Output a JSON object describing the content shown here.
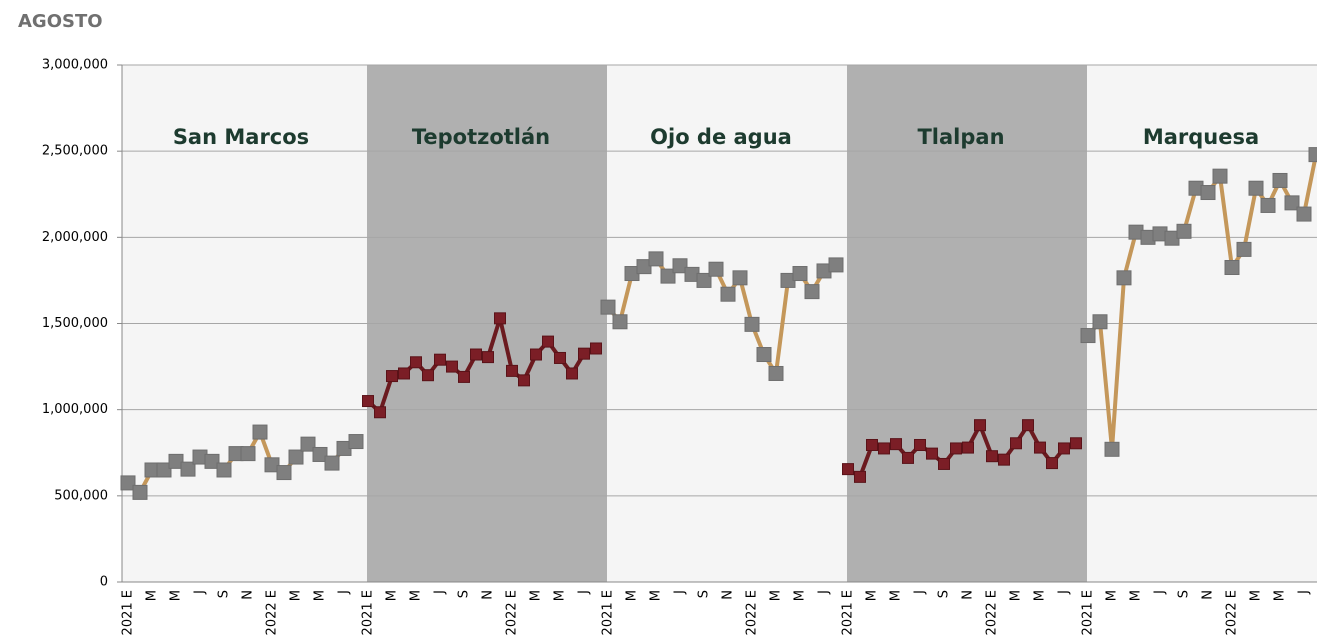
{
  "chart_data": {
    "type": "line",
    "title": "AGOSTO",
    "categories": [
      "2021 E",
      null,
      "M",
      null,
      "M",
      null,
      "J",
      null,
      "S",
      null,
      "N",
      null,
      "2022 E",
      null,
      "M",
      null,
      "M",
      null,
      "J",
      null
    ],
    "ylim": [
      0,
      3000000
    ],
    "yticks": [
      0,
      {
        "value": 500000,
        "label": "500,000"
      },
      {
        "value": 1000000,
        "label": "1,000,000"
      },
      {
        "value": 1500000,
        "label": "1,500,000"
      },
      {
        "value": 2000000,
        "label": "2,000,000"
      },
      {
        "value": 2500000,
        "label": "2,500,000"
      },
      {
        "value": 3000000,
        "label": "3,000,000"
      }
    ],
    "grid": true,
    "series": [
      {
        "name": "San Marcos",
        "color": "#c4975a",
        "marker_color": "#7f7f7f",
        "background": "#f5f5f5",
        "values": [
          575000,
          520000,
          650000,
          650000,
          700000,
          655000,
          725000,
          700000,
          650000,
          745000,
          745000,
          870000,
          680000,
          635000,
          725000,
          800000,
          740000,
          690000,
          775000,
          815000
        ]
      },
      {
        "name": "Tepotzotlán",
        "color": "#6b1a1f",
        "marker_color": "#7b1e26",
        "background": "#b0b0b0",
        "values": [
          1050000,
          985000,
          1195000,
          1210000,
          1275000,
          1200000,
          1290000,
          1250000,
          1190000,
          1320000,
          1305000,
          1530000,
          1225000,
          1170000,
          1320000,
          1395000,
          1300000,
          1210000,
          1325000,
          1355000
        ]
      },
      {
        "name": "Ojo de agua",
        "color": "#c4975a",
        "marker_color": "#7f7f7f",
        "background": "#f5f5f5",
        "values": [
          1595000,
          1510000,
          1790000,
          1830000,
          1875000,
          1775000,
          1835000,
          1785000,
          1750000,
          1815000,
          1670000,
          1765000,
          1495000,
          1320000,
          1210000,
          1750000,
          1790000,
          1685000,
          1805000,
          1840000
        ]
      },
      {
        "name": "Tlalpan",
        "color": "#6b1a1f",
        "marker_color": "#7b1e26",
        "background": "#b0b0b0",
        "values": [
          655000,
          610000,
          795000,
          775000,
          800000,
          720000,
          795000,
          745000,
          685000,
          775000,
          780000,
          910000,
          730000,
          710000,
          805000,
          910000,
          780000,
          690000,
          775000,
          805000
        ]
      },
      {
        "name": "Marquesa",
        "color": "#c4975a",
        "marker_color": "#7f7f7f",
        "background": "#f5f5f5",
        "values": [
          1430000,
          1510000,
          770000,
          1765000,
          2030000,
          2000000,
          2020000,
          1995000,
          2035000,
          2285000,
          2260000,
          2355000,
          1825000,
          1930000,
          2285000,
          2185000,
          2330000,
          2200000,
          2135000,
          2480000
        ]
      }
    ]
  }
}
